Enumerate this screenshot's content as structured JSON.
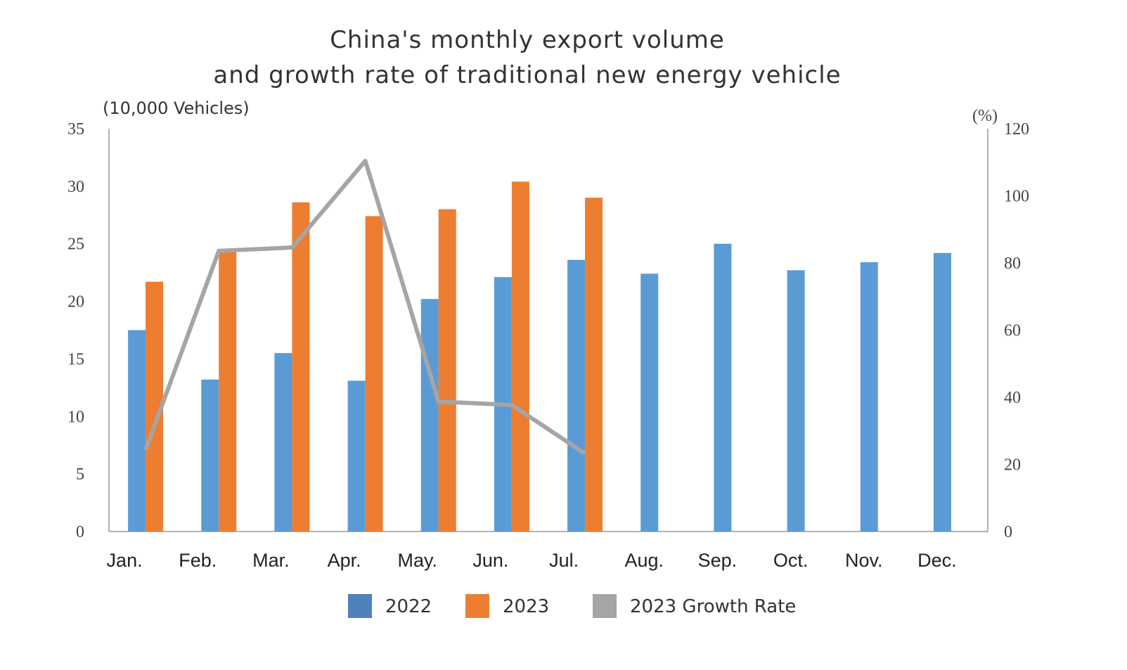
{
  "chart_data": {
    "type": "bar",
    "title": [
      "China's monthly export volume",
      "and growth rate of traditional new energy vehicle"
    ],
    "ylabel": "(10,000 Vehicles)",
    "y2label": "(%)",
    "ylim": [
      0,
      35
    ],
    "y2lim": [
      0,
      120
    ],
    "yticks": [
      "0",
      "5",
      "10",
      "15",
      "20",
      "25",
      "30",
      "35"
    ],
    "y2ticks": [
      "0",
      "20",
      "40",
      "60",
      "80",
      "100",
      "120"
    ],
    "categories": [
      "Jan.",
      "Feb.",
      "Mar.",
      "Apr.",
      "May.",
      "Jun.",
      "Jul.",
      "Aug.",
      "Sep.",
      "Oct.",
      "Nov.",
      "Dec."
    ],
    "grid": false,
    "legend": "bottom",
    "series": [
      {
        "name": "2022",
        "type": "bar",
        "axis": "left",
        "color": "#5b9bd5",
        "values": [
          17.5,
          13.2,
          15.5,
          13.1,
          20.2,
          22.1,
          23.6,
          22.4,
          25.0,
          22.7,
          23.4,
          24.2
        ]
      },
      {
        "name": "2023",
        "type": "bar",
        "axis": "left",
        "color": "#ed7d31",
        "values": [
          21.7,
          24.4,
          28.6,
          27.4,
          28.0,
          30.4,
          29.0,
          null,
          null,
          null,
          null,
          null
        ]
      },
      {
        "name": "2023 Growth Rate",
        "type": "line",
        "axis": "right",
        "color": "#a5a5a5",
        "values": [
          24.3,
          83.6,
          84.6,
          110.4,
          38.7,
          37.7,
          23.2,
          null,
          null,
          null,
          null,
          null
        ]
      }
    ],
    "legend_colors": [
      "#4f81bd",
      "#ed7d31",
      "#a5a5a5"
    ]
  }
}
